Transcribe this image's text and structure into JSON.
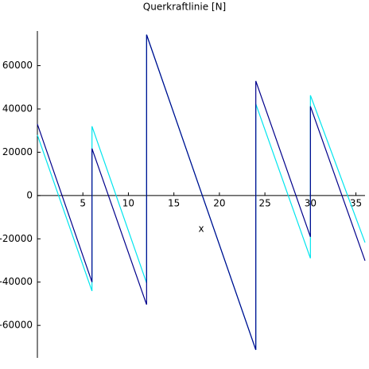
{
  "chart_data": {
    "type": "line",
    "title": "Querkraftlinie [N]",
    "x_label": "x",
    "xlim": [
      0,
      36
    ],
    "ylim": [
      -75000,
      76000
    ],
    "xticks": [
      5,
      10,
      15,
      20,
      25,
      30,
      35
    ],
    "yticks": [
      -60000,
      -40000,
      -20000,
      0,
      20000,
      40000,
      60000
    ],
    "series": [
      {
        "name": "cyan",
        "color": "#00e5ee",
        "x": [
          0,
          6,
          6,
          12,
          12,
          24,
          24,
          30,
          30,
          36
        ],
        "values": [
          28000,
          -44100,
          32000,
          -40400,
          74300,
          -71300,
          42300,
          -29000,
          46300,
          -21700
        ]
      },
      {
        "name": "navy",
        "color": "#00008b",
        "x": [
          0,
          6,
          6,
          12,
          12,
          24,
          24,
          30,
          30,
          30,
          36
        ],
        "values": [
          33000,
          -40000,
          21700,
          -50400,
          74300,
          -71300,
          52900,
          -19100,
          18000,
          41200,
          -30100
        ]
      }
    ]
  }
}
